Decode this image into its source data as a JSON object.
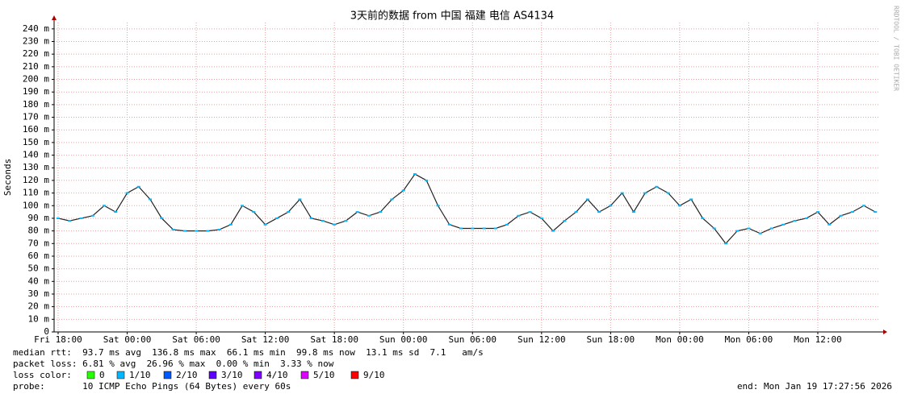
{
  "chart_data": {
    "type": "line",
    "title": "3天前的数据 from 中国 福建 电信 AS4134",
    "ylabel": "Seconds",
    "side_note": "RRDTOOL / TOBI OETIKER",
    "xlim": [
      -0.35,
      71.4
    ],
    "xticks": [
      {
        "value": 0,
        "label": "Fri 18:00"
      },
      {
        "value": 6,
        "label": "Sat 00:00"
      },
      {
        "value": 12,
        "label": "Sat 06:00"
      },
      {
        "value": 18,
        "label": "Sat 12:00"
      },
      {
        "value": 24,
        "label": "Sat 18:00"
      },
      {
        "value": 30,
        "label": "Sun 00:00"
      },
      {
        "value": 36,
        "label": "Sun 06:00"
      },
      {
        "value": 42,
        "label": "Sun 12:00"
      },
      {
        "value": 48,
        "label": "Sun 18:00"
      },
      {
        "value": 54,
        "label": "Mon 00:00"
      },
      {
        "value": 60,
        "label": "Mon 06:00"
      },
      {
        "value": 66,
        "label": "Mon 12:00"
      }
    ],
    "ylim": [
      0,
      0.245
    ],
    "yticks": [
      0,
      {
        "value": 0.01,
        "label": "10 m"
      },
      {
        "value": 0.02,
        "label": "20 m"
      },
      {
        "value": 0.03,
        "label": "30 m"
      },
      {
        "value": 0.04,
        "label": "40 m"
      },
      {
        "value": 0.05,
        "label": "50 m"
      },
      {
        "value": 0.06,
        "label": "60 m"
      },
      {
        "value": 0.07,
        "label": "70 m"
      },
      {
        "value": 0.08,
        "label": "80 m"
      },
      {
        "value": 0.09,
        "label": "90 m"
      },
      {
        "value": 0.1,
        "label": "100 m"
      },
      {
        "value": 0.11,
        "label": "110 m"
      },
      {
        "value": 0.12,
        "label": "120 m"
      },
      {
        "value": 0.13,
        "label": "130 m"
      },
      {
        "value": 0.14,
        "label": "140 m"
      },
      {
        "value": 0.15,
        "label": "150 m"
      },
      {
        "value": 0.16,
        "label": "160 m"
      },
      {
        "value": 0.17,
        "label": "170 m"
      },
      {
        "value": 0.18,
        "label": "180 m"
      },
      {
        "value": 0.19,
        "label": "190 m"
      },
      {
        "value": 0.2,
        "label": "200 m"
      },
      {
        "value": 0.21,
        "label": "210 m"
      },
      {
        "value": 0.22,
        "label": "220 m"
      },
      {
        "value": 0.23,
        "label": "230 m"
      },
      {
        "value": 0.24,
        "label": "240 m"
      }
    ],
    "grid": true,
    "x": [
      0,
      1,
      2,
      3,
      4,
      5,
      6,
      7,
      8,
      9,
      10,
      11,
      12,
      13,
      14,
      15,
      16,
      17,
      18,
      19,
      20,
      21,
      22,
      23,
      24,
      25,
      26,
      27,
      28,
      29,
      30,
      31,
      32,
      33,
      34,
      35,
      36,
      37,
      38,
      39,
      40,
      41,
      42,
      43,
      44,
      45,
      46,
      47,
      48,
      49,
      50,
      51,
      52,
      53,
      54,
      55,
      56,
      57,
      58,
      59,
      60,
      61,
      62,
      63,
      64,
      65,
      66,
      67,
      68,
      69,
      70,
      71
    ],
    "series": [
      {
        "color": "#222222",
        "marker_color": "#00b8ff",
        "values": [
          0.09,
          0.088,
          0.09,
          0.092,
          0.1,
          0.095,
          0.11,
          0.115,
          0.105,
          0.09,
          0.081,
          0.08,
          0.08,
          0.08,
          0.081,
          0.085,
          0.1,
          0.095,
          0.085,
          0.09,
          0.095,
          0.105,
          0.09,
          0.088,
          0.085,
          0.088,
          0.095,
          0.092,
          0.095,
          0.105,
          0.112,
          0.125,
          0.12,
          0.1,
          0.085,
          0.082,
          0.082,
          0.082,
          0.082,
          0.085,
          0.092,
          0.095,
          0.09,
          0.08,
          0.088,
          0.095,
          0.105,
          0.095,
          0.1,
          0.11,
          0.095,
          0.11,
          0.115,
          0.11,
          0.1,
          0.105,
          0.09,
          0.082,
          0.07,
          0.08,
          0.082,
          0.078,
          0.082,
          0.085,
          0.088,
          0.09,
          0.095,
          0.085,
          0.092,
          0.095,
          0.1,
          0.095
        ]
      }
    ],
    "footer": {
      "rtt": "median rtt:  93.7 ms avg  136.8 ms max  66.1 ms min  99.8 ms now  13.1 ms sd  7.1   am/s",
      "loss": "packet loss: 6.81 % avg  26.96 % max  0.00 % min  3.33 % now",
      "loss_label": "loss color:",
      "loss_colors": [
        {
          "label": "0",
          "color": "#26ff00"
        },
        {
          "label": "1/10",
          "color": "#00b8ff"
        },
        {
          "label": "2/10",
          "color": "#0059ff"
        },
        {
          "label": "3/10",
          "color": "#5e00ff"
        },
        {
          "label": "4/10",
          "color": "#7e00ff"
        },
        {
          "label": "5/10",
          "color": "#dd00ff"
        },
        {
          "label": "9/10",
          "color": "#ff0000"
        }
      ],
      "probe": "probe:       10 ICMP Echo Pings (64 Bytes) every 60s",
      "end": "end: Mon Jan 19 17:27:56 2026"
    }
  }
}
